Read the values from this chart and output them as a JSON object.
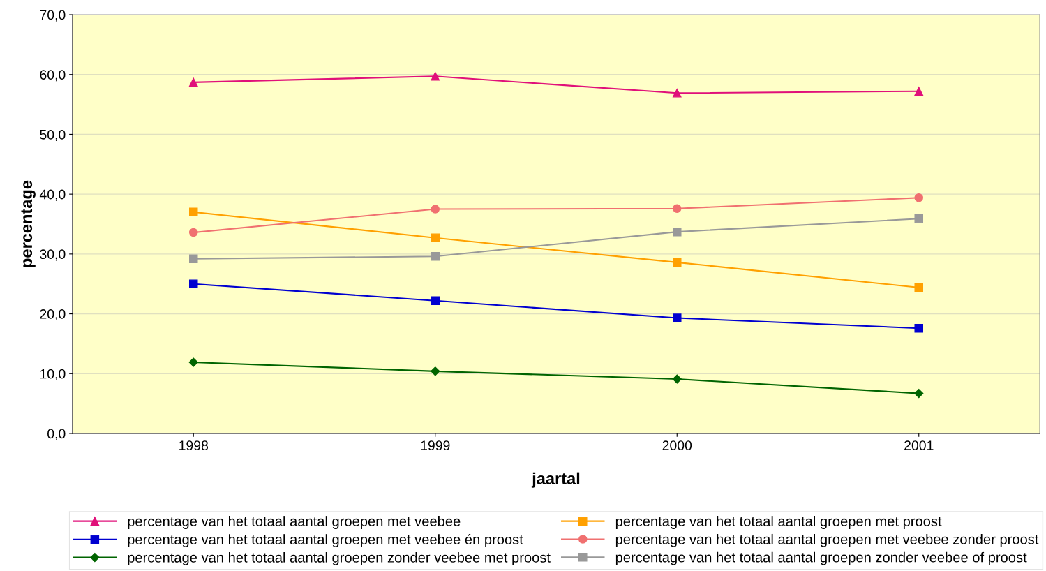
{
  "chart_data": {
    "type": "line",
    "xlabel": "jaartal",
    "ylabel": "percentage",
    "categories": [
      "1998",
      "1999",
      "2000",
      "2001"
    ],
    "series": [
      {
        "name": "percentage van het totaal aantal groepen met veebee",
        "color": "#e0107a",
        "marker": "triangle",
        "values": [
          58.7,
          59.7,
          56.9,
          57.2
        ]
      },
      {
        "name": "percentage van het totaal aantal groepen met proost",
        "color": "#ffa000",
        "marker": "square",
        "values": [
          37.0,
          32.7,
          28.6,
          24.4
        ]
      },
      {
        "name": "percentage van het totaal aantal groepen met veebee én proost",
        "color": "#0000d0",
        "marker": "square",
        "values": [
          25.0,
          22.2,
          19.3,
          17.6
        ]
      },
      {
        "name": "percentage van het totaal aantal groepen met veebee zonder proost",
        "color": "#f07070",
        "marker": "circle",
        "values": [
          33.6,
          37.5,
          37.6,
          39.4
        ]
      },
      {
        "name": "percentage van het totaal aantal groepen zonder veebee met proost",
        "color": "#006400",
        "marker": "diamond",
        "values": [
          11.9,
          10.4,
          9.1,
          6.7
        ]
      },
      {
        "name": "percentage van het totaal aantal groepen zonder veebee of proost",
        "color": "#999999",
        "marker": "square",
        "values": [
          29.2,
          29.6,
          33.7,
          35.9
        ]
      }
    ],
    "ylim": [
      0,
      70
    ],
    "yticks": [
      {
        "value": 0,
        "label": "0,0"
      },
      {
        "value": 10,
        "label": "10,0"
      },
      {
        "value": 20,
        "label": "20,0"
      },
      {
        "value": 30,
        "label": "30,0"
      },
      {
        "value": 40,
        "label": "40,0"
      },
      {
        "value": 50,
        "label": "50,0"
      },
      {
        "value": 60,
        "label": "60,0"
      },
      {
        "value": 70,
        "label": "70,0"
      }
    ],
    "grid": "y",
    "legend": "bottom",
    "line_style": "solid"
  }
}
